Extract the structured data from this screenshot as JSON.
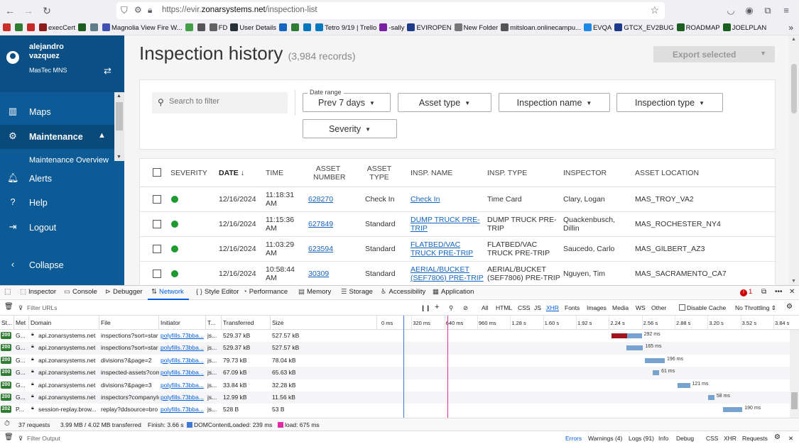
{
  "browser": {
    "url_prefix": "https://evir.",
    "url_domain": "zonarsystems.net",
    "url_path": "/inspection-list",
    "bookmarks": [
      {
        "label": "",
        "color": "#c9302c"
      },
      {
        "label": "",
        "color": "#2e7d32"
      },
      {
        "label": "",
        "color": "#c62828"
      },
      {
        "label": "execCert",
        "color": "#8d1b1b"
      },
      {
        "label": "",
        "color": "#1b5e20"
      },
      {
        "label": "",
        "color": "#607d8b"
      },
      {
        "label": "Magnolia View Fire W...",
        "color": "#3f51b5"
      },
      {
        "label": "",
        "color": "#43a047"
      },
      {
        "label": "",
        "color": "#555555"
      },
      {
        "label": "FD",
        "color": "#616161"
      },
      {
        "label": "User Details",
        "color": "#263238"
      },
      {
        "label": "",
        "color": "#1565c0"
      },
      {
        "label": "",
        "color": "#2e7d32"
      },
      {
        "label": "",
        "color": "#0277bd"
      },
      {
        "label": "Tetro 9/19 | Trello",
        "color": "#0079bf"
      },
      {
        "label": "-sally",
        "color": "#7b1fa2"
      },
      {
        "label": "EVIROPEN",
        "color": "#1e3a8a"
      },
      {
        "label": "New Folder",
        "color": "#777777"
      },
      {
        "label": "mitsloan.onlinecampu...",
        "color": "#555555"
      },
      {
        "label": "EVQA",
        "color": "#1e88e5"
      },
      {
        "label": "GTCX_EV2BUG",
        "color": "#1e3a8a"
      },
      {
        "label": "ROADMAP",
        "color": "#1b5e20"
      },
      {
        "label": "JOELPLAN",
        "color": "#1b5e20"
      }
    ]
  },
  "sidebar": {
    "user_first": "alejandro",
    "user_last": "vazquez",
    "org": "MasTec MNS",
    "items": [
      {
        "label": "Maps",
        "icon": "map-icon"
      },
      {
        "label": "Maintenance",
        "icon": "wrench-icon"
      },
      {
        "label": "Maintenance Overview",
        "icon": ""
      },
      {
        "label": "Alerts",
        "icon": "bell-icon"
      },
      {
        "label": "Help",
        "icon": "help-icon"
      },
      {
        "label": "Logout",
        "icon": "logout-icon"
      },
      {
        "label": "Collapse",
        "icon": "chevron-left-icon"
      }
    ]
  },
  "main": {
    "title": "Inspection history",
    "record_count": "(3,984 records)",
    "export_label": "Export selected",
    "search_placeholder": "Search to filter",
    "filters": {
      "date_legend": "Date range",
      "date_value": "Prev 7 days",
      "asset_type": "Asset type",
      "inspection_name": "Inspection name",
      "inspection_type": "Inspection type",
      "severity": "Severity"
    },
    "columns": {
      "severity": "SEVERITY",
      "date": "DATE",
      "date_sort": "↓",
      "time": "TIME",
      "asset_number_1": "ASSET",
      "asset_number_2": "NUMBER",
      "asset_type_1": "ASSET",
      "asset_type_2": "TYPE",
      "insp_name": "INSP. NAME",
      "insp_type": "INSP. TYPE",
      "inspector": "INSPECTOR",
      "asset_location": "ASSET LOCATION"
    },
    "rows": [
      {
        "date": "12/16/2024",
        "time1": "11:18:31",
        "time2": "AM",
        "asset": "628270",
        "asset_type": "Check In",
        "name1": "Check In",
        "name2": "",
        "type1": "Time Card",
        "type2": "",
        "inspector1": "Clary, Logan",
        "inspector2": "",
        "location": "MAS_TROY_VA2",
        "severity_color": "#1e9b2e"
      },
      {
        "date": "12/16/2024",
        "time1": "11:15:36",
        "time2": "AM",
        "asset": "627849",
        "asset_type": "Standard",
        "name1": "DUMP TRUCK PRE-",
        "name2": "TRIP",
        "type1": "DUMP TRUCK PRE-",
        "type2": "TRIP",
        "inspector1": "Quackenbusch,",
        "inspector2": "Dillin",
        "location": "MAS_ROCHESTER_NY4",
        "severity_color": "#1e9b2e"
      },
      {
        "date": "12/16/2024",
        "time1": "11:03:29",
        "time2": "AM",
        "asset": "623594",
        "asset_type": "Standard",
        "name1": "FLATBED/VAC",
        "name2": "TRUCK PRE-TRIP",
        "type1": "FLATBED/VAC",
        "type2": "TRUCK PRE-TRIP",
        "inspector1": "Saucedo, Carlo",
        "inspector2": "",
        "location": "MAS_GILBERT_AZ3",
        "severity_color": "#1e9b2e"
      },
      {
        "date": "12/16/2024",
        "time1": "10:58:44",
        "time2": "AM",
        "asset": "30309",
        "asset_type": "Standard",
        "name1": "AERIAL/BUCKET",
        "name2": "(SEF7806) PRE-TRIP",
        "type1": "AERIAL/BUCKET",
        "type2": "(SEF7806) PRE-TRIP",
        "inspector1": "Nguyen, Tim",
        "inspector2": "",
        "location": "MAS_SACRAMENTO_CA7",
        "severity_color": "#1e9b2e"
      }
    ]
  },
  "devtools": {
    "tabs": [
      {
        "label": "Inspector",
        "icon": "inspector-icon"
      },
      {
        "label": "Console",
        "icon": "console-icon"
      },
      {
        "label": "Debugger",
        "icon": "debugger-icon"
      },
      {
        "label": "Network",
        "icon": "network-icon"
      },
      {
        "label": "Style Editor",
        "icon": "style-editor-icon"
      },
      {
        "label": "Performance",
        "icon": "performance-icon"
      },
      {
        "label": "Memory",
        "icon": "memory-icon"
      },
      {
        "label": "Storage",
        "icon": "storage-icon"
      },
      {
        "label": "Accessibility",
        "icon": "accessibility-icon"
      },
      {
        "label": "Application",
        "icon": "application-icon"
      }
    ],
    "error_count": "1",
    "filter_placeholder": "Filter URLs",
    "type_filters": [
      "All",
      "HTML",
      "CSS",
      "JS",
      "XHR",
      "Fonts",
      "Images",
      "Media",
      "WS",
      "Other"
    ],
    "disable_cache": "Disable Cache",
    "throttling": "No Throttling ⇕",
    "columns": [
      "St...",
      "Met",
      "Domain",
      "File",
      "Initiator",
      "T...",
      "Transferred",
      "Size"
    ],
    "timeline_ticks": [
      "0 ms",
      "320 ms",
      "640 ms",
      "960 ms",
      "1.28 s",
      "1.60 s",
      "1.92 s",
      "2.24 s",
      "2.56 s",
      "2.88 s",
      "3.20 s",
      "3.52 s",
      "3.84 s"
    ],
    "requests": [
      {
        "status": "200",
        "method": "G...",
        "domain": "api.zonarsystems.net",
        "file": "inspections?sort=star",
        "initiator": "polyfills.73bba...",
        "type": "js...",
        "transferred": "529.37 kB",
        "size": "527.57 kB",
        "start_s": 2.24,
        "wait_s": 0.15,
        "recv_s": 0.142,
        "label": "292 ms",
        "wait_color": "#a0141b"
      },
      {
        "status": "200",
        "method": "G...",
        "domain": "api.zonarsystems.net",
        "file": "inspections?sort=star",
        "initiator": "polyfills.73bba...",
        "type": "js...",
        "transferred": "529.37 kB",
        "size": "527.57 kB",
        "start_s": 2.38,
        "wait_s": 0.0,
        "recv_s": 0.165,
        "label": "165 ms",
        "wait_color": ""
      },
      {
        "status": "200",
        "method": "G...",
        "domain": "api.zonarsystems.net",
        "file": "divisions?&page=2",
        "initiator": "polyfills.73bba...",
        "type": "js...",
        "transferred": "79.73 kB",
        "size": "78.04 kB",
        "start_s": 2.56,
        "wait_s": 0.0,
        "recv_s": 0.196,
        "label": "196 ms",
        "wait_color": ""
      },
      {
        "status": "200",
        "method": "G...",
        "domain": "api.zonarsystems.net",
        "file": "inspected-assets?com",
        "initiator": "polyfills.73bba...",
        "type": "js...",
        "transferred": "67.09 kB",
        "size": "65.63 kB",
        "start_s": 2.64,
        "wait_s": 0.0,
        "recv_s": 0.061,
        "label": "61 ms",
        "wait_color": ""
      },
      {
        "status": "200",
        "method": "G...",
        "domain": "api.zonarsystems.net",
        "file": "divisions?&page=3",
        "initiator": "polyfills.73bba...",
        "type": "js...",
        "transferred": "33.84 kB",
        "size": "32.28 kB",
        "start_s": 2.88,
        "wait_s": 0.0,
        "recv_s": 0.121,
        "label": "121 ms",
        "wait_color": ""
      },
      {
        "status": "200",
        "method": "G...",
        "domain": "api.zonarsystems.net",
        "file": "inspectors?companyIc",
        "initiator": "polyfills.73bba...",
        "type": "js...",
        "transferred": "12.99 kB",
        "size": "11.56 kB",
        "start_s": 3.18,
        "wait_s": 0.0,
        "recv_s": 0.058,
        "label": "58 ms",
        "wait_color": ""
      },
      {
        "status": "202",
        "method": "P...",
        "domain": "session-replay.brow...",
        "file": "replay?ddsource=bro",
        "initiator": "polyfills.73bba...",
        "type": "js...",
        "transferred": "528 B",
        "size": "53 B",
        "start_s": 3.32,
        "wait_s": 0.0,
        "recv_s": 0.19,
        "label": "190 ms",
        "wait_color": ""
      }
    ],
    "summary": {
      "requests": "37 requests",
      "transferred": "3.99 MB / 4.02 MB transferred",
      "finish": "Finish: 3.66 s",
      "dcl": "DOMContentLoaded: 239 ms",
      "load": "load: 675 ms"
    },
    "console": {
      "filter_placeholder": "Filter Output",
      "errors": "Errors",
      "warnings": "Warnings (4)",
      "logs": "Logs (91)",
      "info": "Info",
      "debug": "Debug",
      "css": "CSS",
      "xhr": "XHR",
      "requests": "Requests"
    }
  }
}
